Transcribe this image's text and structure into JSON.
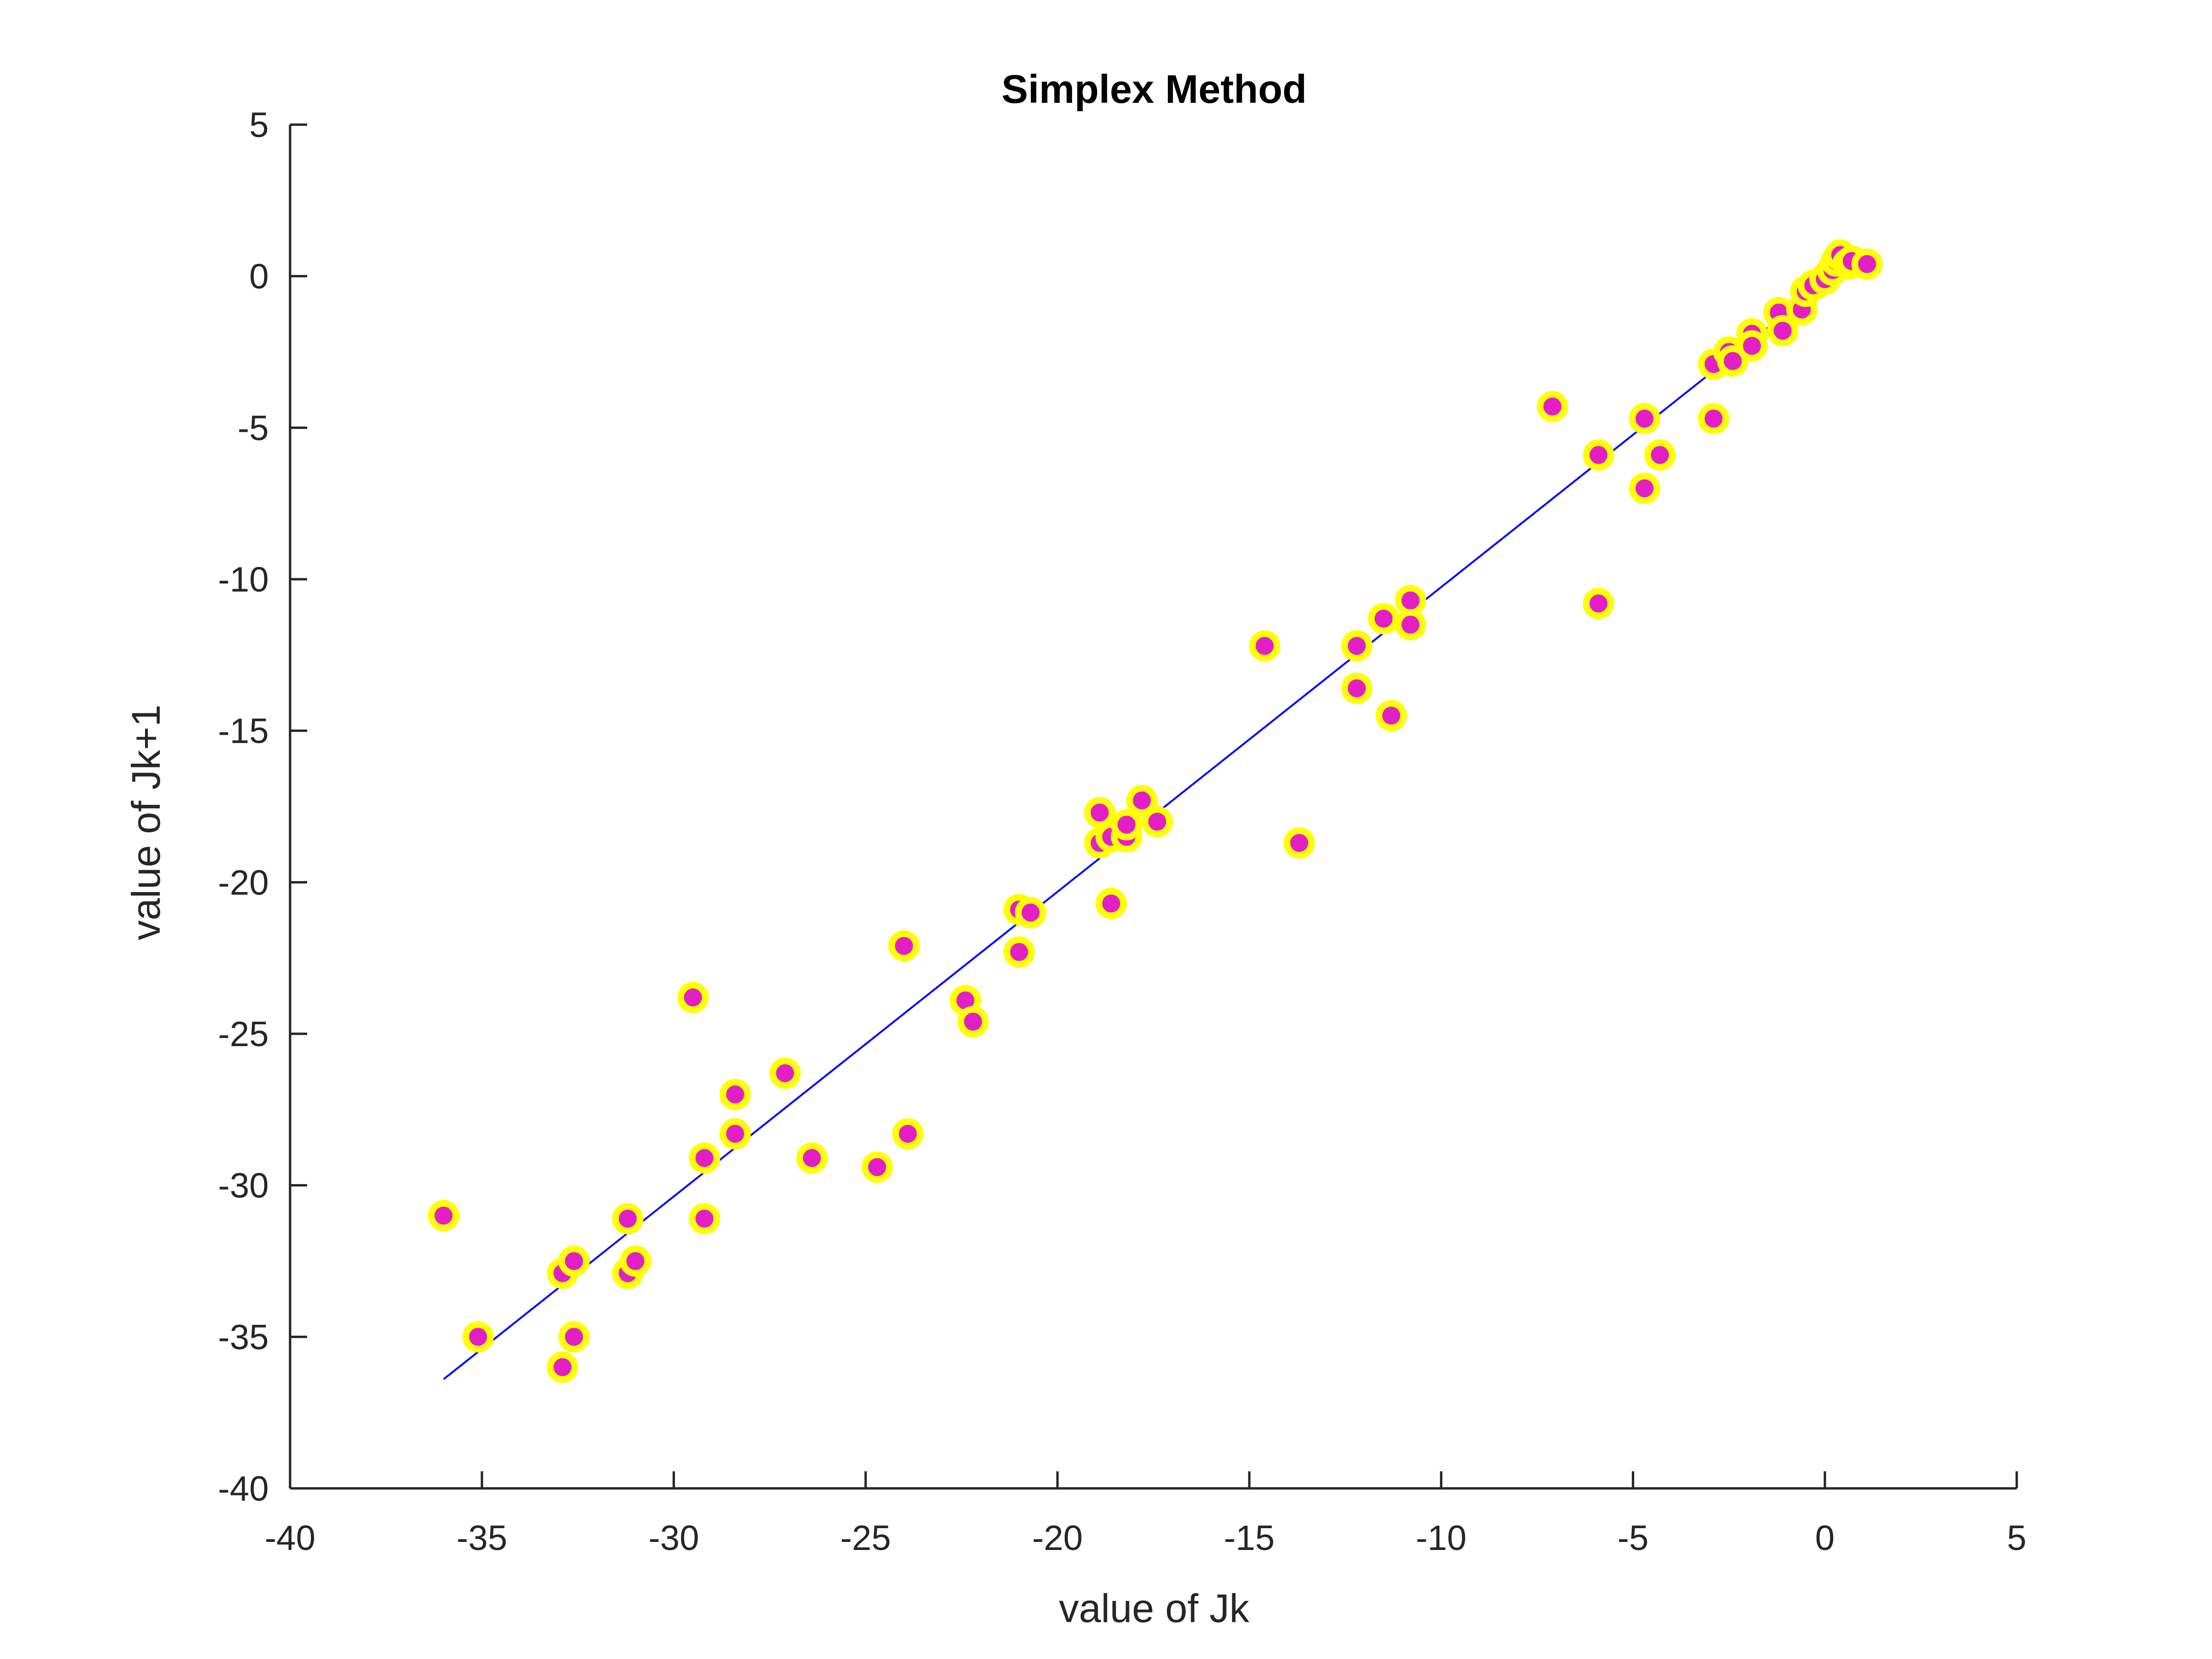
{
  "chart_data": {
    "type": "scatter",
    "title": "Simplex Method",
    "xlabel": "value of Jk",
    "ylabel": "value of Jk+1",
    "xlim": [
      -40,
      5
    ],
    "ylim": [
      -40,
      5
    ],
    "xticks": [
      -40,
      -35,
      -30,
      -25,
      -20,
      -15,
      -10,
      -5,
      0,
      5
    ],
    "yticks": [
      -40,
      -35,
      -30,
      -25,
      -20,
      -15,
      -10,
      -5,
      0,
      5
    ],
    "grid": false,
    "legend": "none",
    "marker_face_color": "#e21fc4",
    "marker_edge_color": "#ffff00",
    "line_color": "#0000ff",
    "series": [
      {
        "kind": "scatter",
        "points": [
          [
            -36.0,
            -31.0
          ],
          [
            -35.1,
            -35.0
          ],
          [
            -32.9,
            -36.0
          ],
          [
            -32.9,
            -32.9
          ],
          [
            -32.6,
            -32.5
          ],
          [
            -32.6,
            -35.0
          ],
          [
            -31.2,
            -31.1
          ],
          [
            -31.2,
            -32.9
          ],
          [
            -31.0,
            -32.5
          ],
          [
            -29.5,
            -23.8
          ],
          [
            -29.2,
            -29.1
          ],
          [
            -29.2,
            -31.1
          ],
          [
            -28.4,
            -27.0
          ],
          [
            -28.4,
            -28.3
          ],
          [
            -27.1,
            -26.3
          ],
          [
            -26.4,
            -29.1
          ],
          [
            -24.7,
            -29.4
          ],
          [
            -24.0,
            -22.1
          ],
          [
            -23.9,
            -28.3
          ],
          [
            -22.4,
            -23.9
          ],
          [
            -22.2,
            -24.6
          ],
          [
            -21.0,
            -20.9
          ],
          [
            -20.7,
            -21.0
          ],
          [
            -21.0,
            -22.3
          ],
          [
            -18.9,
            -17.7
          ],
          [
            -18.9,
            -18.7
          ],
          [
            -18.6,
            -18.5
          ],
          [
            -18.2,
            -18.5
          ],
          [
            -18.2,
            -18.1
          ],
          [
            -17.8,
            -17.3
          ],
          [
            -17.4,
            -18.0
          ],
          [
            -18.6,
            -20.7
          ],
          [
            -14.6,
            -12.2
          ],
          [
            -13.7,
            -18.7
          ],
          [
            -12.2,
            -12.2
          ],
          [
            -12.2,
            -13.6
          ],
          [
            -11.5,
            -11.3
          ],
          [
            -11.3,
            -14.5
          ],
          [
            -10.8,
            -10.7
          ],
          [
            -10.8,
            -11.5
          ],
          [
            -7.1,
            -4.3
          ],
          [
            -5.9,
            -5.9
          ],
          [
            -5.9,
            -10.8
          ],
          [
            -4.7,
            -4.7
          ],
          [
            -4.7,
            -7.0
          ],
          [
            -4.3,
            -5.9
          ],
          [
            -2.9,
            -2.9
          ],
          [
            -2.9,
            -4.7
          ],
          [
            -2.5,
            -2.5
          ],
          [
            -2.4,
            -2.8
          ],
          [
            -1.9,
            -1.9
          ],
          [
            -1.9,
            -2.3
          ],
          [
            -1.2,
            -1.2
          ],
          [
            -1.1,
            -1.8
          ],
          [
            -0.6,
            -1.1
          ],
          [
            -0.5,
            -0.5
          ],
          [
            -0.3,
            -0.3
          ],
          [
            0.0,
            -0.1
          ],
          [
            0.2,
            0.2
          ],
          [
            0.3,
            0.5
          ],
          [
            0.4,
            0.7
          ],
          [
            0.6,
            0.4
          ],
          [
            0.7,
            0.5
          ],
          [
            1.1,
            0.4
          ]
        ]
      },
      {
        "kind": "line",
        "points": [
          [
            -36.0,
            -36.4
          ],
          [
            1.0,
            0.8
          ]
        ]
      }
    ]
  }
}
